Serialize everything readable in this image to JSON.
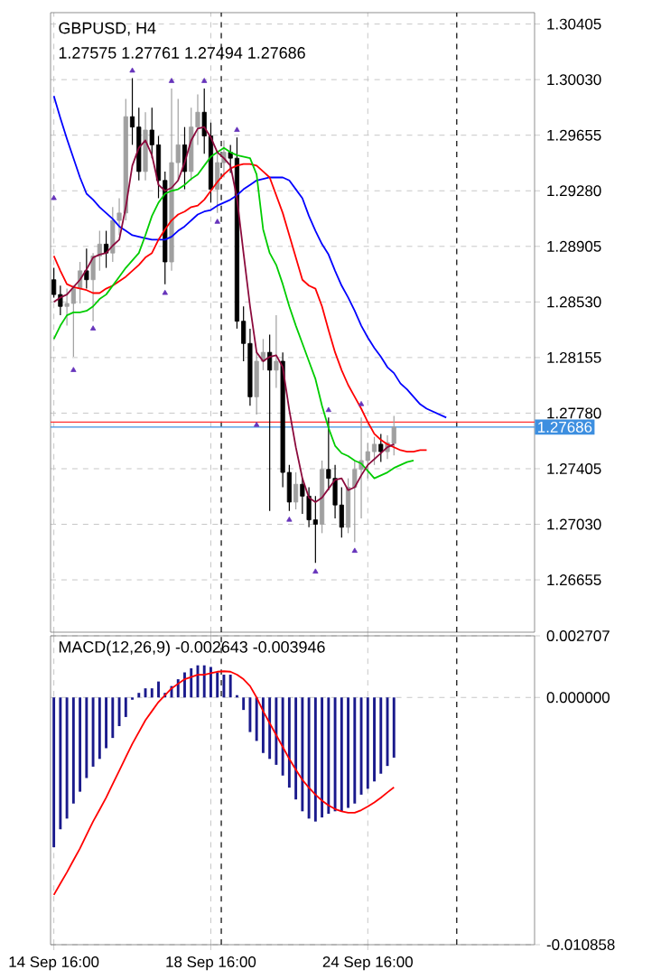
{
  "chart_data": [
    {
      "type": "candlestick",
      "title": "GBPUSD, H4",
      "subtitle": "1.27575 1.27761 1.27494 1.27686",
      "categories": [
        null,
        null,
        null,
        null,
        null,
        null,
        null,
        null,
        null,
        null,
        null,
        null,
        null,
        null,
        null,
        null,
        null,
        null,
        null,
        null,
        null,
        null,
        null,
        null,
        null,
        null,
        null,
        null,
        null,
        null,
        null,
        null,
        null,
        null,
        null,
        null,
        null,
        null,
        null,
        null,
        null,
        null,
        null,
        null,
        null,
        null,
        null,
        null,
        null,
        null,
        null,
        null,
        null,
        null,
        null,
        null,
        null,
        null,
        null,
        null,
        null,
        null,
        null,
        null,
        null,
        null,
        null,
        null,
        null,
        null,
        null,
        null,
        null,
        null
      ],
      "ohlc": [
        [
          1.2868,
          1.2876,
          1.2856,
          1.2858
        ],
        [
          1.2858,
          1.2864,
          1.2844,
          1.285
        ],
        [
          1.285,
          1.2862,
          1.2837,
          1.2852
        ],
        [
          1.2852,
          1.2864,
          1.2816,
          1.2862
        ],
        [
          1.2862,
          1.288,
          1.2852,
          1.2874
        ],
        [
          1.2874,
          1.2889,
          1.2862,
          1.2868
        ],
        [
          1.2868,
          1.2886,
          1.284,
          1.2884
        ],
        [
          1.2884,
          1.2901,
          1.2874,
          1.2892
        ],
        [
          1.2892,
          1.2901,
          1.2876,
          1.2886
        ],
        [
          1.2886,
          1.2917,
          1.288,
          1.2908
        ],
        [
          1.2908,
          1.2923,
          1.2898,
          1.2913
        ],
        [
          1.2913,
          1.299,
          1.2908,
          1.2978
        ],
        [
          1.2978,
          1.3004,
          1.2959,
          1.2971
        ],
        [
          1.2971,
          1.2984,
          1.2935,
          1.2941
        ],
        [
          1.2941,
          1.2981,
          1.2935,
          1.2969
        ],
        [
          1.2969,
          1.2984,
          1.295,
          1.2959
        ],
        [
          1.2959,
          1.2965,
          1.2923,
          1.2935
        ],
        [
          1.2935,
          1.2941,
          1.2865,
          1.288
        ],
        [
          1.288,
          1.2997,
          1.2874,
          1.2947
        ],
        [
          1.2947,
          1.299,
          1.2935,
          1.2959
        ],
        [
          1.2959,
          1.2971,
          1.2929,
          1.2941
        ],
        [
          1.2941,
          1.2984,
          1.2935,
          1.2971
        ],
        [
          1.2971,
          1.2993,
          1.2959,
          1.2981
        ],
        [
          1.2981,
          1.2997,
          1.2953,
          1.2965
        ],
        [
          1.2965,
          1.2974,
          1.292,
          1.2929
        ],
        [
          1.2929,
          1.2953,
          1.2913,
          1.2947
        ],
        [
          1.2947,
          1.2962,
          1.2937,
          1.2954
        ],
        [
          1.2954,
          1.2959,
          1.294,
          1.295
        ],
        [
          1.295,
          1.2964,
          1.2835,
          1.284
        ],
        [
          1.284,
          1.285,
          1.2813,
          1.2825
        ],
        [
          1.2825,
          1.2835,
          1.2783,
          1.2789
        ],
        [
          1.2789,
          1.2819,
          1.2777,
          1.2813
        ],
        [
          1.2813,
          1.2828,
          1.2807,
          1.2819
        ],
        [
          1.2819,
          1.2831,
          1.2712,
          1.2807
        ],
        [
          1.2807,
          1.2844,
          1.2795,
          1.2813
        ],
        [
          1.2813,
          1.2819,
          1.2728,
          1.2738
        ],
        [
          1.2738,
          1.2743,
          1.2712,
          1.2718
        ],
        [
          1.2718,
          1.2738,
          1.2713,
          1.273
        ],
        [
          1.273,
          1.2734,
          1.271,
          1.2722
        ],
        [
          1.2722,
          1.2728,
          1.2701,
          1.2706
        ],
        [
          1.2706,
          1.2722,
          1.2677,
          1.2703
        ],
        [
          1.2703,
          1.2746,
          1.2697,
          1.274
        ],
        [
          1.274,
          1.2775,
          1.2726,
          1.2734
        ],
        [
          1.2734,
          1.2743,
          1.2707,
          1.2716
        ],
        [
          1.2716,
          1.2728,
          1.2694,
          1.2701
        ],
        [
          1.2701,
          1.2734,
          1.2697,
          1.2728
        ],
        [
          1.2728,
          1.2746,
          1.2691,
          1.274
        ],
        [
          1.274,
          1.2775,
          1.2707,
          1.2746
        ],
        [
          1.2746,
          1.2758,
          1.2734,
          1.2752
        ],
        [
          1.2752,
          1.2762,
          1.2743,
          1.2757
        ],
        [
          1.2757,
          1.2764,
          1.2745,
          1.2752
        ],
        [
          1.2752,
          1.2763,
          1.2747,
          1.2758
        ],
        [
          1.27575,
          1.27761,
          1.27494,
          1.27686
        ],
        null,
        null,
        null,
        null,
        null,
        null,
        null,
        null,
        null,
        null,
        null,
        null,
        null,
        null,
        null,
        null,
        null,
        null,
        null,
        null,
        null
      ],
      "colors": [
        "#000000",
        "#000000",
        "#a0a0a0",
        "#a0a0a0",
        "#a0a0a0",
        "#000000",
        "#a0a0a0",
        "#a0a0a0",
        "#000000",
        "#a0a0a0",
        "#a0a0a0",
        "#a0a0a0",
        "#000000",
        "#000000",
        "#a0a0a0",
        "#000000",
        "#000000",
        "#000000",
        "#a0a0a0",
        "#a0a0a0",
        "#000000",
        "#a0a0a0",
        "#a0a0a0",
        "#000000",
        "#000000",
        "#a0a0a0",
        "#a0a0a0",
        "#000000",
        "#000000",
        "#000000",
        "#000000",
        "#a0a0a0",
        "#a0a0a0",
        "#000000",
        "#a0a0a0",
        "#000000",
        "#000000",
        "#a0a0a0",
        "#000000",
        "#000000",
        "#000000",
        "#a0a0a0",
        "#000000",
        "#000000",
        "#000000",
        "#a0a0a0",
        "#a0a0a0",
        "#a0a0a0",
        "#a0a0a0",
        "#a0a0a0",
        "#000000",
        "#a0a0a0",
        "#a0a0a0",
        null,
        null,
        null,
        null,
        null,
        null,
        null,
        null,
        null,
        null,
        null,
        null,
        null,
        null,
        null,
        null,
        null,
        null,
        null,
        null,
        null
      ],
      "series": [
        {
          "type": "line",
          "color": "#0000ff",
          "values": [
            1.2992,
            1.2977,
            1.2963,
            1.295,
            1.2937,
            1.2926,
            1.2922,
            1.2917,
            1.2913,
            1.2909,
            1.2904,
            1.2901,
            1.2898,
            1.2897,
            1.2896,
            1.2895,
            1.2895,
            1.2895,
            1.2897,
            1.2901,
            1.2904,
            1.2908,
            1.2912,
            1.2914,
            1.2915,
            1.2918,
            1.292,
            1.2922,
            1.2925,
            1.2929,
            1.2932,
            1.2935,
            1.2936,
            1.2937,
            1.2937,
            1.2937,
            1.2935,
            1.2929,
            1.2923,
            1.2911,
            1.2901,
            1.2892,
            1.2885,
            1.2874,
            1.2864,
            1.2856,
            1.2847,
            1.2837,
            1.2829,
            1.2822,
            1.2816,
            1.2809,
            1.2805,
            1.2798,
            1.2794,
            1.2789,
            1.2784,
            1.2781,
            1.2779,
            1.2777,
            1.2775,
            null,
            null,
            null,
            null,
            null,
            null,
            null,
            null,
            null,
            null,
            null,
            null,
            null
          ]
        },
        {
          "type": "line",
          "color": "#ff0000",
          "values": [
            1.2884,
            1.2874,
            1.2865,
            1.2863,
            1.2862,
            1.2861,
            1.2859,
            1.2859,
            1.2862,
            1.2864,
            1.2867,
            1.287,
            1.2874,
            1.2878,
            1.2883,
            1.2886,
            1.2895,
            1.2902,
            1.2908,
            1.2912,
            1.2914,
            1.2917,
            1.2918,
            1.2922,
            1.2928,
            1.2934,
            1.2939,
            1.2943,
            1.2945,
            1.2946,
            1.2946,
            1.2945,
            1.2941,
            1.2937,
            1.2925,
            1.2913,
            1.2898,
            1.2883,
            1.2868,
            1.2864,
            1.2862,
            1.285,
            1.2834,
            1.2819,
            1.2807,
            1.2797,
            1.2789,
            1.2781,
            1.2772,
            1.2764,
            1.276,
            1.2757,
            1.2755,
            1.2753,
            1.2752,
            1.2752,
            1.2753,
            1.2753,
            null,
            null,
            null,
            null,
            null,
            null,
            null,
            null,
            null,
            null,
            null,
            null,
            null,
            null,
            null,
            null
          ]
        },
        {
          "type": "line",
          "color": "#00cc00",
          "values": [
            1.2828,
            1.2837,
            1.2844,
            1.2846,
            1.2846,
            1.2847,
            1.285,
            1.2855,
            1.2858,
            1.2864,
            1.287,
            1.2876,
            1.2881,
            1.2886,
            1.2898,
            1.2911,
            1.292,
            1.2926,
            1.2928,
            1.2929,
            1.2932,
            1.2936,
            1.2939,
            1.2945,
            1.2951,
            1.2954,
            1.2957,
            1.2954,
            1.2952,
            1.2951,
            1.295,
            1.2939,
            1.2902,
            1.2886,
            1.2878,
            1.2865,
            1.285,
            1.2837,
            1.2825,
            1.2813,
            1.2801,
            1.2783,
            1.2768,
            1.2756,
            1.2751,
            1.2749,
            1.2746,
            1.2744,
            1.2739,
            1.2734,
            1.2736,
            1.2738,
            1.2741,
            1.2743,
            1.2745,
            1.2746,
            null,
            null,
            null,
            null,
            null,
            null,
            null,
            null,
            null,
            null,
            null,
            null,
            null,
            null,
            null,
            null,
            null,
            null
          ]
        },
        {
          "type": "line",
          "color": "#8b0a3c",
          "values": [
            1.2853,
            1.2856,
            1.2858,
            1.2863,
            1.2868,
            1.2875,
            1.2883,
            1.2885,
            1.2886,
            1.2891,
            1.2895,
            1.2917,
            1.2945,
            1.2957,
            1.2962,
            1.2952,
            1.2932,
            1.2928,
            1.293,
            1.2935,
            1.2947,
            1.2962,
            1.297,
            1.2971,
            1.2964,
            1.2954,
            1.295,
            1.2945,
            1.2923,
            1.2886,
            1.285,
            1.2819,
            1.2813,
            1.2816,
            1.2817,
            1.2809,
            1.278,
            1.2755,
            1.2734,
            1.2721,
            1.2718,
            1.2721,
            1.2727,
            1.2733,
            1.2734,
            1.2726,
            1.2728,
            1.2736,
            1.2743,
            1.2747,
            1.2751,
            1.2755,
            1.2757,
            null,
            null,
            null,
            null,
            null,
            null,
            null,
            null,
            null,
            null,
            null,
            null,
            null,
            null,
            null,
            null,
            null,
            null,
            null,
            null,
            null
          ]
        },
        {
          "type": "scatter",
          "color": "#6633bb",
          "marker": "triangle",
          "values": [
            1.2923,
            null,
            null,
            null,
            null,
            null,
            null,
            null,
            null,
            null,
            null,
            null,
            1.3009,
            null,
            null,
            null,
            null,
            null,
            1.3002,
            null,
            null,
            null,
            null,
            1.3002,
            null,
            null,
            null,
            null,
            1.2969,
            null,
            null,
            null,
            null,
            null,
            null,
            null,
            null,
            null,
            null,
            null,
            null,
            null,
            1.278,
            null,
            null,
            null,
            null,
            1.2784,
            null,
            null,
            null,
            null,
            null,
            null,
            null,
            null,
            null,
            null,
            null,
            null,
            null,
            null,
            null,
            null,
            null,
            null,
            null,
            null,
            null,
            null,
            null,
            null,
            null,
            null
          ]
        },
        {
          "type": "scatter",
          "color": "#6633bb",
          "marker": "triangle",
          "values": [
            null,
            null,
            null,
            1.2807,
            null,
            null,
            1.2835,
            null,
            null,
            null,
            null,
            null,
            null,
            null,
            null,
            null,
            null,
            1.2859,
            null,
            null,
            null,
            null,
            null,
            null,
            null,
            1.2907,
            null,
            null,
            null,
            null,
            null,
            1.277,
            null,
            null,
            null,
            null,
            1.2706,
            null,
            null,
            null,
            1.2671,
            null,
            null,
            null,
            null,
            null,
            1.2685,
            null,
            null,
            null,
            null,
            null,
            null,
            null,
            null,
            null,
            null,
            null,
            null,
            null,
            null,
            null,
            null,
            null,
            null,
            null,
            null,
            null,
            null,
            null,
            null,
            null,
            null,
            null
          ]
        }
      ],
      "ylim": [
        1.26302,
        1.30482
      ],
      "yticks": [
        1.30405,
        {
          "value": 1.3003,
          "label": "1.30030"
        },
        1.29655,
        {
          "value": 1.2928,
          "label": "1.29280"
        },
        1.28905,
        {
          "value": 1.2853,
          "label": "1.28530"
        },
        1.28155,
        {
          "value": 1.2778,
          "label": "1.27780"
        },
        1.27405,
        {
          "value": 1.2703,
          "label": "1.27030"
        },
        1.26655
      ],
      "grid": true,
      "tick_labels": "y",
      "ref_lines": [
        {
          "axis": "y",
          "value": 1.2772,
          "color": "#ff3030",
          "line_style": "solid"
        },
        {
          "axis": "y",
          "value": 1.27686,
          "label": "1.27686",
          "color": "#3d8fe0",
          "line_style": "solid"
        }
      ]
    },
    {
      "type": "bar",
      "title": "MACD(12,26,9) -0.002643 -0.003946",
      "categories": [
        "14 Sep 16:00",
        null,
        null,
        null,
        null,
        null,
        null,
        null,
        null,
        null,
        null,
        null,
        null,
        null,
        null,
        null,
        null,
        null,
        null,
        null,
        null,
        null,
        null,
        null,
        "18 Sep 16:00",
        null,
        null,
        null,
        null,
        null,
        null,
        null,
        null,
        null,
        null,
        null,
        null,
        null,
        null,
        null,
        null,
        null,
        null,
        null,
        null,
        null,
        null,
        null,
        "24 Sep 16:00",
        null,
        null,
        null,
        null,
        null,
        null,
        null,
        null,
        null,
        null,
        null,
        null,
        null,
        null,
        null,
        null,
        null,
        null,
        null,
        null,
        null,
        null,
        null,
        null,
        null
      ],
      "series": [
        {
          "type": "bar",
          "color": "#1a1a8c",
          "values": [
            -0.00658,
            -0.00579,
            -0.00532,
            -0.00466,
            -0.00414,
            -0.00354,
            -0.00304,
            -0.0027,
            -0.00223,
            -0.00178,
            -0.00126,
            -0.00086,
            -0.0001,
            0.0002,
            0.0004,
            0.0004,
            0.0007,
            0.0002,
            0.0005,
            0.0008,
            0.0011,
            0.00128,
            0.00141,
            0.00141,
            0.00134,
            0.0011,
            0.001,
            0.001,
            0.0001,
            -0.00055,
            -0.00152,
            -0.00191,
            -0.00244,
            -0.0027,
            -0.00296,
            -0.00343,
            -0.00396,
            -0.00448,
            -0.005,
            -0.00532,
            -0.00545,
            -0.00527,
            -0.00511,
            -0.005,
            -0.005,
            -0.00485,
            -0.00466,
            -0.00427,
            -0.00401,
            -0.00369,
            -0.00335,
            -0.00301,
            -0.002643,
            null,
            null,
            null,
            null,
            null,
            null,
            null,
            null,
            null,
            null,
            null,
            null,
            null,
            null,
            null,
            null,
            null,
            null,
            null,
            null,
            null
          ]
        },
        {
          "type": "line",
          "color": "#ff0000",
          "values": [
            -0.00867,
            -0.00817,
            -0.00768,
            -0.00715,
            -0.00663,
            -0.00603,
            -0.00545,
            -0.00493,
            -0.0044,
            -0.0038,
            -0.00322,
            -0.00262,
            -0.00204,
            -0.00152,
            -0.001,
            -0.0006,
            -0.0002,
            0.0001,
            0.0004,
            0.0006,
            0.0008,
            0.0009,
            0.001,
            0.001,
            0.00107,
            0.00113,
            0.00115,
            0.00113,
            0.001,
            0.0008,
            0.0005,
            0,
            -0.0006,
            -0.00113,
            -0.00165,
            -0.00217,
            -0.0027,
            -0.00317,
            -0.00362,
            -0.00396,
            -0.00427,
            -0.00453,
            -0.00474,
            -0.0049,
            -0.005,
            -0.00506,
            -0.00506,
            -0.00495,
            -0.00479,
            -0.00461,
            -0.0044,
            -0.00417,
            -0.003946,
            null,
            null,
            null,
            null,
            null,
            null,
            null,
            null,
            null,
            null,
            null,
            null,
            null,
            null,
            null,
            null,
            null,
            null,
            null,
            null,
            null
          ]
        }
      ],
      "ylim": [
        -0.010858,
        0.002707
      ],
      "yticks": [
        0.002707,
        {
          "value": 0,
          "label": "0.000000"
        },
        -0.010858
      ],
      "grid": true
    }
  ]
}
